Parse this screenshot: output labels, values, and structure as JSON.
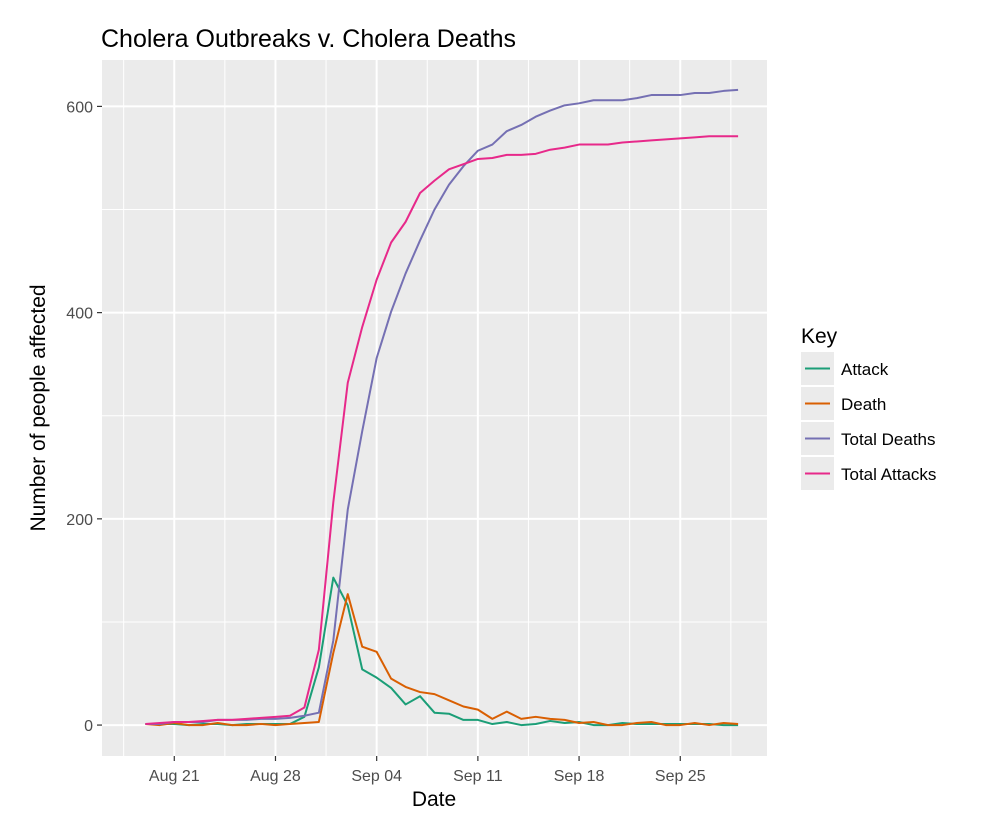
{
  "chart_data": {
    "type": "line",
    "title": "Cholera Outbreaks v. Cholera Deaths",
    "xlabel": "Date",
    "ylabel": "Number of people affected",
    "legend": {
      "title": "Key",
      "placement": "right",
      "entries": [
        "Attack",
        "Death",
        "Total Deaths",
        "Total Attacks"
      ]
    },
    "x_ticks": [
      {
        "date": "1854-08-21",
        "label": "Aug 21"
      },
      {
        "date": "1854-08-28",
        "label": "Aug 28"
      },
      {
        "date": "1854-09-04",
        "label": "Sep 04"
      },
      {
        "date": "1854-09-11",
        "label": "Sep 11"
      },
      {
        "date": "1854-09-18",
        "label": "Sep 18"
      },
      {
        "date": "1854-09-25",
        "label": "Sep 25"
      }
    ],
    "y_ticks": [
      0,
      200,
      400,
      600
    ],
    "xlim": [
      "1854-08-16",
      "1854-10-01"
    ],
    "ylim": [
      -30,
      645
    ],
    "grid": true,
    "series": [
      {
        "name": "Attack",
        "color": "#1b9e77",
        "points": [
          [
            "1854-08-19",
            1
          ],
          [
            "1854-08-20",
            1
          ],
          [
            "1854-08-21",
            1
          ],
          [
            "1854-08-22",
            0
          ],
          [
            "1854-08-23",
            1
          ],
          [
            "1854-08-24",
            1
          ],
          [
            "1854-08-25",
            0
          ],
          [
            "1854-08-26",
            1
          ],
          [
            "1854-08-27",
            1
          ],
          [
            "1854-08-28",
            1
          ],
          [
            "1854-08-29",
            1
          ],
          [
            "1854-08-30",
            8
          ],
          [
            "1854-08-31",
            56
          ],
          [
            "1854-09-01",
            143
          ],
          [
            "1854-09-02",
            116
          ],
          [
            "1854-09-03",
            54
          ],
          [
            "1854-09-04",
            46
          ],
          [
            "1854-09-05",
            36
          ],
          [
            "1854-09-06",
            20
          ],
          [
            "1854-09-07",
            28
          ],
          [
            "1854-09-08",
            12
          ],
          [
            "1854-09-09",
            11
          ],
          [
            "1854-09-10",
            5
          ],
          [
            "1854-09-11",
            5
          ],
          [
            "1854-09-12",
            1
          ],
          [
            "1854-09-13",
            3
          ],
          [
            "1854-09-14",
            0
          ],
          [
            "1854-09-15",
            1
          ],
          [
            "1854-09-16",
            4
          ],
          [
            "1854-09-17",
            2
          ],
          [
            "1854-09-18",
            3
          ],
          [
            "1854-09-19",
            0
          ],
          [
            "1854-09-20",
            0
          ],
          [
            "1854-09-21",
            2
          ],
          [
            "1854-09-22",
            1
          ],
          [
            "1854-09-23",
            1
          ],
          [
            "1854-09-24",
            1
          ],
          [
            "1854-09-25",
            1
          ],
          [
            "1854-09-26",
            1
          ],
          [
            "1854-09-27",
            1
          ],
          [
            "1854-09-28",
            0
          ],
          [
            "1854-09-29",
            0
          ]
        ]
      },
      {
        "name": "Death",
        "color": "#d95f02",
        "points": [
          [
            "1854-08-19",
            1
          ],
          [
            "1854-08-20",
            0
          ],
          [
            "1854-08-21",
            2
          ],
          [
            "1854-08-22",
            0
          ],
          [
            "1854-08-23",
            0
          ],
          [
            "1854-08-24",
            2
          ],
          [
            "1854-08-25",
            0
          ],
          [
            "1854-08-26",
            0
          ],
          [
            "1854-08-27",
            1
          ],
          [
            "1854-08-28",
            0
          ],
          [
            "1854-08-29",
            1
          ],
          [
            "1854-08-30",
            2
          ],
          [
            "1854-08-31",
            3
          ],
          [
            "1854-09-01",
            70
          ],
          [
            "1854-09-02",
            127
          ],
          [
            "1854-09-03",
            76
          ],
          [
            "1854-09-04",
            71
          ],
          [
            "1854-09-05",
            45
          ],
          [
            "1854-09-06",
            37
          ],
          [
            "1854-09-07",
            32
          ],
          [
            "1854-09-08",
            30
          ],
          [
            "1854-09-09",
            24
          ],
          [
            "1854-09-10",
            18
          ],
          [
            "1854-09-11",
            15
          ],
          [
            "1854-09-12",
            6
          ],
          [
            "1854-09-13",
            13
          ],
          [
            "1854-09-14",
            6
          ],
          [
            "1854-09-15",
            8
          ],
          [
            "1854-09-16",
            6
          ],
          [
            "1854-09-17",
            5
          ],
          [
            "1854-09-18",
            2
          ],
          [
            "1854-09-19",
            3
          ],
          [
            "1854-09-20",
            0
          ],
          [
            "1854-09-21",
            0
          ],
          [
            "1854-09-22",
            2
          ],
          [
            "1854-09-23",
            3
          ],
          [
            "1854-09-24",
            0
          ],
          [
            "1854-09-25",
            0
          ],
          [
            "1854-09-26",
            2
          ],
          [
            "1854-09-27",
            0
          ],
          [
            "1854-09-28",
            2
          ],
          [
            "1854-09-29",
            1
          ]
        ]
      },
      {
        "name": "Total Deaths",
        "color": "#7570b3",
        "points": [
          [
            "1854-08-19",
            1
          ],
          [
            "1854-08-20",
            1
          ],
          [
            "1854-08-21",
            3
          ],
          [
            "1854-08-22",
            3
          ],
          [
            "1854-08-23",
            3
          ],
          [
            "1854-08-24",
            5
          ],
          [
            "1854-08-25",
            5
          ],
          [
            "1854-08-26",
            5
          ],
          [
            "1854-08-27",
            6
          ],
          [
            "1854-08-28",
            6
          ],
          [
            "1854-08-29",
            7
          ],
          [
            "1854-08-30",
            9
          ],
          [
            "1854-08-31",
            12
          ],
          [
            "1854-09-01",
            82
          ],
          [
            "1854-09-02",
            209
          ],
          [
            "1854-09-03",
            285
          ],
          [
            "1854-09-04",
            356
          ],
          [
            "1854-09-05",
            401
          ],
          [
            "1854-09-06",
            438
          ],
          [
            "1854-09-07",
            470
          ],
          [
            "1854-09-08",
            500
          ],
          [
            "1854-09-09",
            524
          ],
          [
            "1854-09-10",
            542
          ],
          [
            "1854-09-11",
            557
          ],
          [
            "1854-09-12",
            563
          ],
          [
            "1854-09-13",
            576
          ],
          [
            "1854-09-14",
            582
          ],
          [
            "1854-09-15",
            590
          ],
          [
            "1854-09-16",
            596
          ],
          [
            "1854-09-17",
            601
          ],
          [
            "1854-09-18",
            603
          ],
          [
            "1854-09-19",
            606
          ],
          [
            "1854-09-20",
            606
          ],
          [
            "1854-09-21",
            606
          ],
          [
            "1854-09-22",
            608
          ],
          [
            "1854-09-23",
            611
          ],
          [
            "1854-09-24",
            611
          ],
          [
            "1854-09-25",
            611
          ],
          [
            "1854-09-26",
            613
          ],
          [
            "1854-09-27",
            613
          ],
          [
            "1854-09-28",
            615
          ],
          [
            "1854-09-29",
            616
          ]
        ]
      },
      {
        "name": "Total Attacks",
        "color": "#e7298a",
        "points": [
          [
            "1854-08-19",
            1
          ],
          [
            "1854-08-20",
            2
          ],
          [
            "1854-08-21",
            3
          ],
          [
            "1854-08-22",
            3
          ],
          [
            "1854-08-23",
            4
          ],
          [
            "1854-08-24",
            5
          ],
          [
            "1854-08-25",
            5
          ],
          [
            "1854-08-26",
            6
          ],
          [
            "1854-08-27",
            7
          ],
          [
            "1854-08-28",
            8
          ],
          [
            "1854-08-29",
            9
          ],
          [
            "1854-08-30",
            17
          ],
          [
            "1854-08-31",
            73
          ],
          [
            "1854-09-01",
            216
          ],
          [
            "1854-09-02",
            332
          ],
          [
            "1854-09-03",
            386
          ],
          [
            "1854-09-04",
            432
          ],
          [
            "1854-09-05",
            468
          ],
          [
            "1854-09-06",
            488
          ],
          [
            "1854-09-07",
            516
          ],
          [
            "1854-09-08",
            528
          ],
          [
            "1854-09-09",
            539
          ],
          [
            "1854-09-10",
            544
          ],
          [
            "1854-09-11",
            549
          ],
          [
            "1854-09-12",
            550
          ],
          [
            "1854-09-13",
            553
          ],
          [
            "1854-09-14",
            553
          ],
          [
            "1854-09-15",
            554
          ],
          [
            "1854-09-16",
            558
          ],
          [
            "1854-09-17",
            560
          ],
          [
            "1854-09-18",
            563
          ],
          [
            "1854-09-19",
            563
          ],
          [
            "1854-09-20",
            563
          ],
          [
            "1854-09-21",
            565
          ],
          [
            "1854-09-22",
            566
          ],
          [
            "1854-09-23",
            567
          ],
          [
            "1854-09-24",
            568
          ],
          [
            "1854-09-25",
            569
          ],
          [
            "1854-09-26",
            570
          ],
          [
            "1854-09-27",
            571
          ],
          [
            "1854-09-28",
            571
          ],
          [
            "1854-09-29",
            571
          ]
        ]
      }
    ]
  }
}
